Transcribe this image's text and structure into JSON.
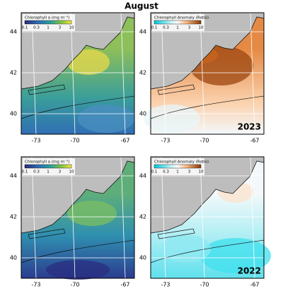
{
  "title": "August",
  "lat_ticks": [
    "44",
    "42",
    "40"
  ],
  "lon_ticks": [
    "-73",
    "-70",
    "-67"
  ],
  "panels": [
    {
      "colorbar": {
        "label": "Chlorophyll a (mg m⁻³)",
        "ticks": [
          "0.1",
          "0.3",
          "1",
          "3",
          "10"
        ]
      }
    },
    {
      "colorbar": {
        "label": "Chlorophyll Anomaly (Ratio)",
        "ticks": [
          "0.1",
          "0.3",
          "1",
          "3",
          "10"
        ]
      },
      "year": "2023"
    },
    {
      "colorbar": {
        "label": "Chlorophyll a (mg m⁻³)",
        "ticks": [
          "0.1",
          "0.3",
          "1",
          "3",
          "10"
        ]
      }
    },
    {
      "colorbar": {
        "label": "Chlorophyll Anomaly (Ratio)",
        "ticks": [
          "0.1",
          "0.3",
          "1",
          "3",
          "10"
        ]
      },
      "year": "2022"
    }
  ]
}
